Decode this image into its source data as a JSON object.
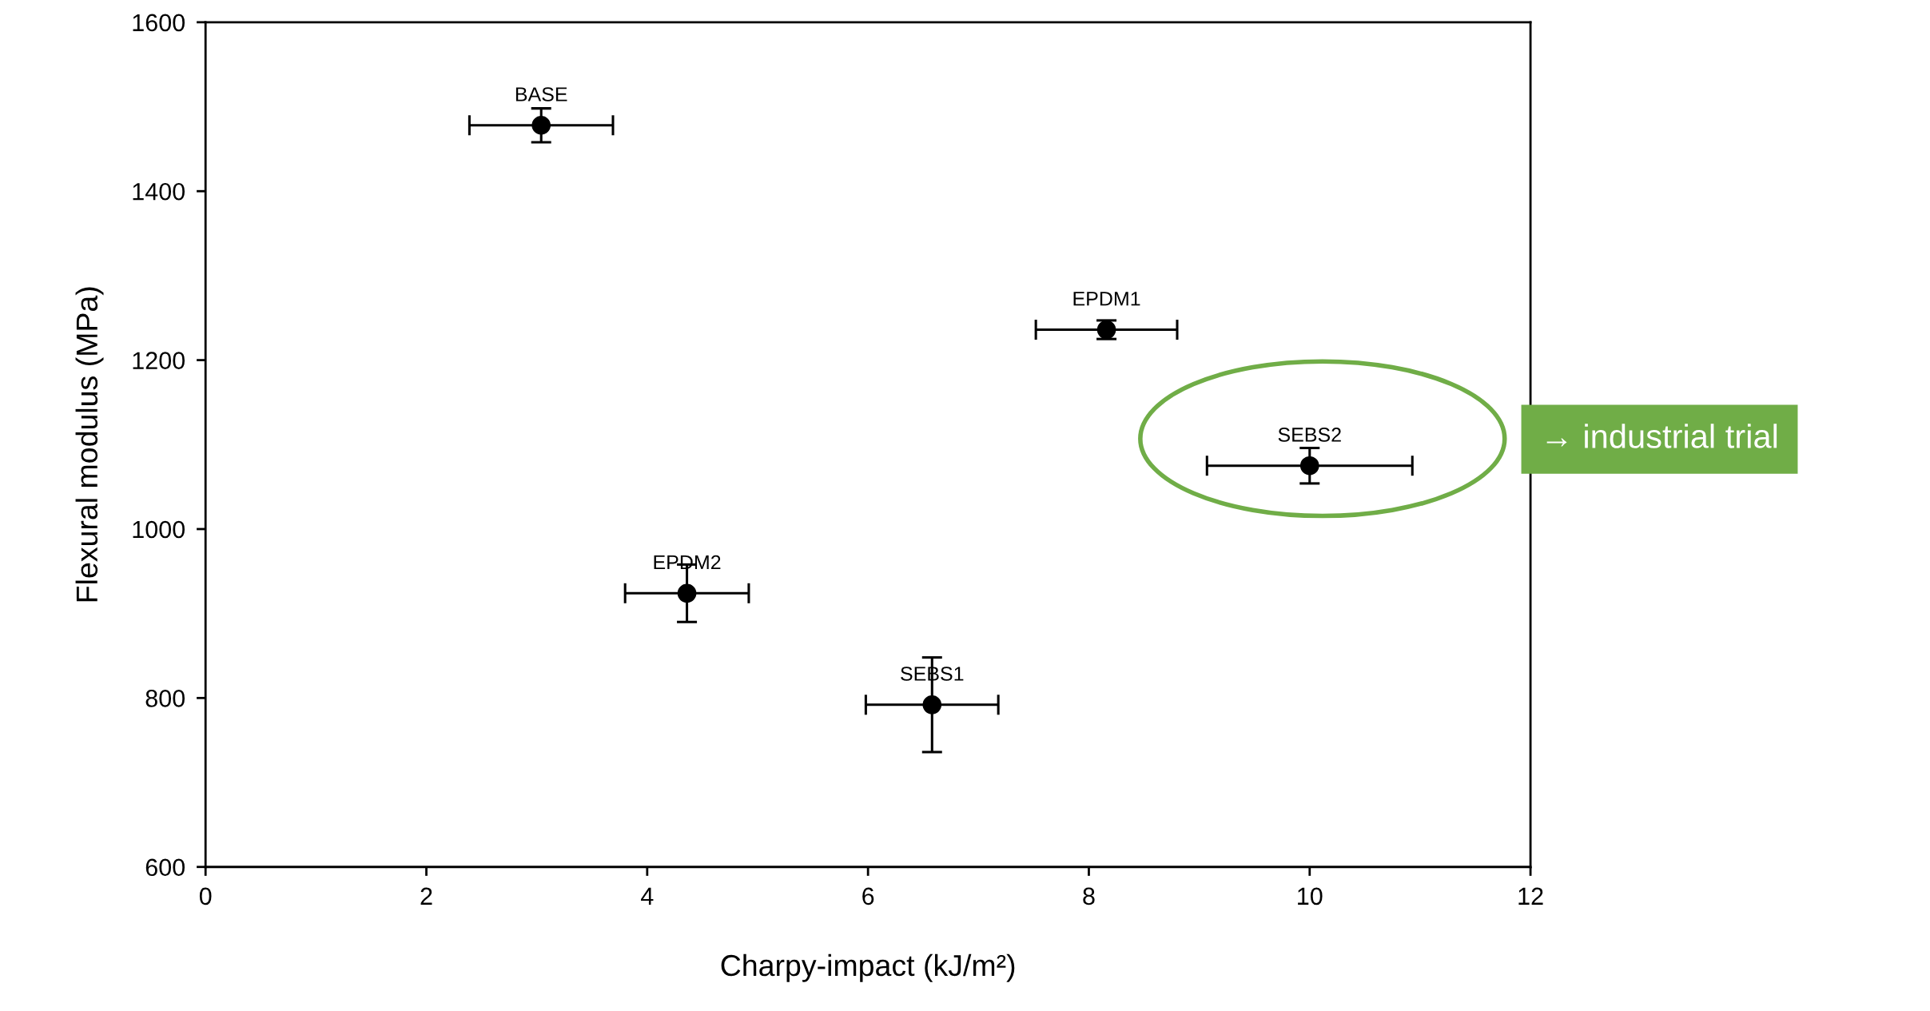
{
  "chart_data": {
    "type": "scatter",
    "xlabel": "Charpy-impact (kJ/m²)",
    "ylabel": "Flexural modulus (MPa)",
    "x": [
      3.04,
      8.16,
      10.0,
      4.36,
      6.58
    ],
    "values": [
      1478,
      1236,
      1075,
      924,
      792
    ],
    "errors": [
      20,
      11,
      21,
      34,
      56
    ],
    "xerrors": [
      0.65,
      0.64,
      0.93,
      0.56,
      0.6
    ],
    "color": "#000000",
    "marker": "circle",
    "grid": false,
    "legend": false,
    "xlim": [
      0,
      12
    ],
    "xticks": [
      0,
      2,
      4,
      6,
      8,
      10,
      12
    ],
    "ylim": [
      600,
      1600
    ],
    "yticks": [
      600,
      800,
      1000,
      1200,
      1400,
      1600
    ],
    "annotations": [
      {
        "text": "BASE",
        "x": 3.04,
        "y": 1478
      },
      {
        "text": "EPDM1",
        "x": 8.16,
        "y": 1236
      },
      {
        "text": "SEBS2",
        "x": 10.0,
        "y": 1075
      },
      {
        "text": "EPDM2",
        "x": 4.36,
        "y": 924
      },
      {
        "text": "SEBS1",
        "x": 6.58,
        "y": 792
      },
      "→ industrial trial"
    ]
  }
}
